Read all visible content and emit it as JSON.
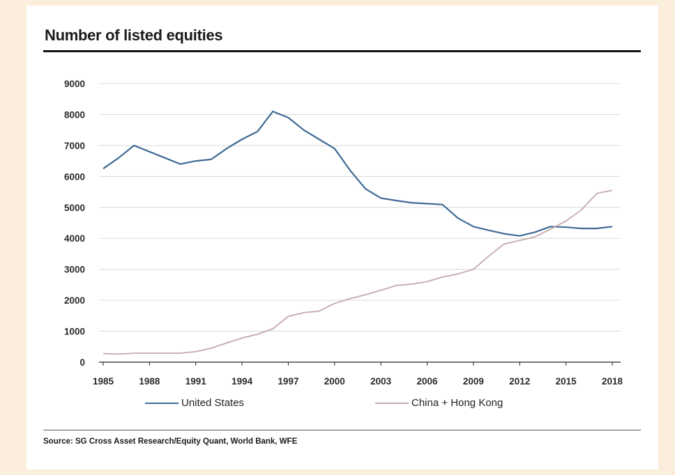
{
  "header": {
    "title": "Number of listed equities"
  },
  "footer": {
    "source": "Source: SG Cross Asset Research/Equity Quant, World Bank, WFE"
  },
  "colors": {
    "us": "#3f6a95",
    "china": "#c4a9a9",
    "grid": "#d9d9d9",
    "background": "#fbeedd"
  },
  "chart_data": {
    "type": "line",
    "title": "Number of listed equities",
    "xlabel": "",
    "ylabel": "",
    "xlim": [
      1985,
      2018
    ],
    "ylim": [
      0,
      9000
    ],
    "yticks": [
      0,
      1000,
      2000,
      3000,
      4000,
      5000,
      6000,
      7000,
      8000,
      9000
    ],
    "xticks": [
      1985,
      1988,
      1991,
      1994,
      1997,
      2000,
      2003,
      2006,
      2009,
      2012,
      2015,
      2018
    ],
    "grid": true,
    "legend_position": "bottom",
    "series": [
      {
        "name": "United States",
        "color": "#3f6a95",
        "x": [
          1985,
          1986,
          1987,
          1988,
          1989,
          1990,
          1991,
          1992,
          1993,
          1994,
          1995,
          1996,
          1997,
          1998,
          1999,
          2000,
          2001,
          2002,
          2003,
          2004,
          2005,
          2006,
          2007,
          2008,
          2009,
          2010,
          2011,
          2012,
          2013,
          2014,
          2015,
          2016,
          2017,
          2018
        ],
        "values": [
          6250,
          6600,
          7000,
          6800,
          6600,
          6400,
          6500,
          6550,
          6900,
          7200,
          7450,
          8100,
          7900,
          7500,
          7200,
          6900,
          6200,
          5600,
          5300,
          5220,
          5150,
          5120,
          5090,
          4650,
          4380,
          4260,
          4150,
          4080,
          4200,
          4380,
          4360,
          4320,
          4320,
          4380
        ]
      },
      {
        "name": "China + Hong Kong",
        "color": "#c4a9a9",
        "x": [
          1985,
          1986,
          1987,
          1988,
          1989,
          1990,
          1991,
          1992,
          1993,
          1994,
          1995,
          1996,
          1997,
          1998,
          1999,
          2000,
          2001,
          2002,
          2003,
          2004,
          2005,
          2006,
          2007,
          2008,
          2009,
          2010,
          2011,
          2012,
          2013,
          2014,
          2015,
          2016,
          2017,
          2018
        ],
        "values": [
          280,
          260,
          290,
          290,
          290,
          290,
          340,
          450,
          620,
          780,
          900,
          1080,
          1480,
          1600,
          1650,
          1900,
          2050,
          2180,
          2320,
          2480,
          2520,
          2600,
          2750,
          2850,
          3000,
          3430,
          3820,
          3930,
          4050,
          4300,
          4560,
          4920,
          5450,
          5550
        ]
      }
    ]
  }
}
